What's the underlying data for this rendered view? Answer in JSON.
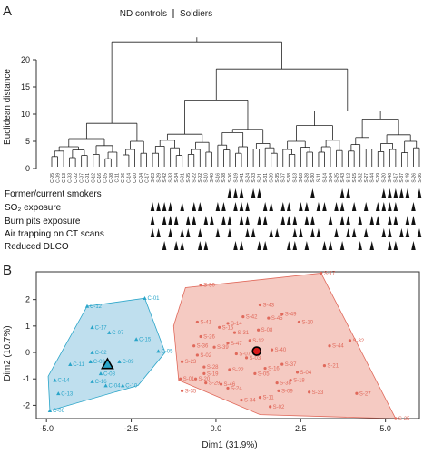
{
  "figure": {
    "panel_a_letter": "A",
    "panel_b_letter": "B"
  },
  "chart_data": [
    {
      "type": "dendrogram",
      "ylabel": "Euclidean distance",
      "ylim": [
        0,
        24
      ],
      "yticks": [
        0,
        5,
        10,
        15,
        20
      ],
      "groups": [
        {
          "name": "ND controls"
        },
        {
          "name": "Soldiers"
        }
      ],
      "leaves": [
        "C-05",
        "C-09",
        "C-13",
        "C-03",
        "C-02",
        "C-07",
        "C-01",
        "C-12",
        "C-16",
        "C-15",
        "C-08",
        "C-11",
        "C-06",
        "C-14",
        "C-10",
        "C-04",
        "C-17",
        "S-23",
        "S-29",
        "S-42",
        "S-33",
        "S-34",
        "S-01",
        "S-05",
        "S-22",
        "S-02",
        "S-10",
        "S-40",
        "S-16",
        "S-08",
        "S-06",
        "S-19",
        "S-41",
        "S-24",
        "S-03",
        "S-21",
        "S-31",
        "S-39",
        "S-35",
        "S-07",
        "S-38",
        "S-13",
        "S-18",
        "S-28",
        "S-30",
        "S-11",
        "S-14",
        "S-04",
        "S-25",
        "S-43",
        "S-12",
        "S-15",
        "S-32",
        "S-27",
        "S-44",
        "S-09",
        "S-20",
        "S-46",
        "S-17",
        "S-37",
        "S-48",
        "S-26",
        "S-36"
      ],
      "traits": [
        {
          "name": "Former/current smokers",
          "present": [
            "S-06",
            "S-19",
            "S-41",
            "S-03",
            "S-21",
            "S-30",
            "S-43",
            "S-12",
            "S-20",
            "S-46",
            "S-17",
            "S-37",
            "S-48",
            "S-36"
          ]
        },
        {
          "name": "SO₂ exposure",
          "present": [
            "S-23",
            "S-29",
            "S-42",
            "S-33",
            "S-01",
            "S-22",
            "S-02",
            "S-16",
            "S-08",
            "S-19",
            "S-41",
            "S-24",
            "S-31",
            "S-39",
            "S-07",
            "S-38",
            "S-18",
            "S-28",
            "S-11",
            "S-14",
            "S-25",
            "S-43",
            "S-15",
            "S-27",
            "S-09",
            "S-20",
            "S-46",
            "S-17",
            "S-26"
          ]
        },
        {
          "name": "Burn pits exposure",
          "present": [
            "S-23",
            "S-42",
            "S-33",
            "S-34",
            "S-05",
            "S-22",
            "S-10",
            "S-40",
            "S-08",
            "S-06",
            "S-41",
            "S-24",
            "S-21",
            "S-31",
            "S-07",
            "S-38",
            "S-13",
            "S-28",
            "S-30",
            "S-04",
            "S-43",
            "S-12",
            "S-32",
            "S-44",
            "S-09",
            "S-46",
            "S-17",
            "S-48",
            "S-26"
          ]
        },
        {
          "name": "Air trapping on CT scans",
          "present": [
            "S-23",
            "S-29",
            "S-33",
            "S-01",
            "S-05",
            "S-02",
            "S-16",
            "S-06",
            "S-24",
            "S-03",
            "S-39",
            "S-35",
            "S-13",
            "S-18",
            "S-30",
            "S-11",
            "S-25",
            "S-12",
            "S-15",
            "S-27",
            "S-20",
            "S-46",
            "S-37",
            "S-48",
            "S-36"
          ]
        },
        {
          "name": "Reduced DLCO",
          "present": [
            "S-42",
            "S-34",
            "S-01",
            "S-02",
            "S-10",
            "S-19",
            "S-41",
            "S-21",
            "S-31",
            "S-38",
            "S-13",
            "S-28",
            "S-14",
            "S-04",
            "S-43",
            "S-32",
            "S-44",
            "S-46",
            "S-17",
            "S-26"
          ]
        }
      ]
    },
    {
      "type": "scatter",
      "xlabel": "Dim1 (31.9%)",
      "ylabel": "Dim2 (10.7%)",
      "xlim": [
        -5.3,
        6.0
      ],
      "ylim": [
        -2.5,
        3.05
      ],
      "xticks": [
        -5.0,
        -2.5,
        0.0,
        2.5,
        5.0
      ],
      "xtick_labels": [
        "-5.0",
        "-2.5",
        "0.0",
        "2.5",
        "5.0"
      ],
      "yticks": [
        -2,
        -1,
        0,
        1,
        2
      ],
      "yticklabels": [
        "-2",
        "-1",
        "0",
        "1",
        "2"
      ],
      "series": [
        {
          "color": "#2aa5c9",
          "fill": "#a9d4e8",
          "marker": "triangle",
          "centroid": {
            "x": -3.2,
            "y": -0.45
          },
          "hull": [
            [
              -4.9,
              -2.2
            ],
            [
              -2.3,
              -1.25
            ],
            [
              -1.5,
              0.0
            ],
            [
              -2.1,
              2.05
            ],
            [
              -3.8,
              1.75
            ],
            [
              -4.95,
              -0.9
            ]
          ],
          "points": [
            {
              "label": "C-01",
              "x": -2.1,
              "y": 2.05
            },
            {
              "label": "C-12",
              "x": -3.8,
              "y": 1.75
            },
            {
              "label": "C-17",
              "x": -3.65,
              "y": 0.95
            },
            {
              "label": "C-07",
              "x": -3.15,
              "y": 0.75
            },
            {
              "label": "C-15",
              "x": -2.35,
              "y": 0.5
            },
            {
              "label": "C-05",
              "x": -1.7,
              "y": 0.05
            },
            {
              "label": "C-02",
              "x": -3.65,
              "y": 0.0
            },
            {
              "label": "C-03",
              "x": -3.7,
              "y": -0.35
            },
            {
              "label": "C-09",
              "x": -2.85,
              "y": -0.35
            },
            {
              "label": "C-11",
              "x": -4.3,
              "y": -0.45
            },
            {
              "label": "C-08",
              "x": -3.4,
              "y": -0.8
            },
            {
              "label": "C-14",
              "x": -4.75,
              "y": -1.05
            },
            {
              "label": "C-16",
              "x": -3.65,
              "y": -1.1
            },
            {
              "label": "C-04",
              "x": -3.25,
              "y": -1.25
            },
            {
              "label": "C-10",
              "x": -2.75,
              "y": -1.25
            },
            {
              "label": "C-13",
              "x": -4.65,
              "y": -1.55
            },
            {
              "label": "C-06",
              "x": -4.9,
              "y": -2.2
            }
          ]
        },
        {
          "color": "#e0695b",
          "fill": "#f1b8ae",
          "marker": "circle",
          "centroid": {
            "x": 1.2,
            "y": 0.05
          },
          "hull": [
            [
              -1.1,
              -1.05
            ],
            [
              1.3,
              -2.35
            ],
            [
              5.3,
              -2.5
            ],
            [
              3.1,
              3.0
            ],
            [
              -0.9,
              2.45
            ],
            [
              -1.25,
              1.0
            ]
          ],
          "points": [
            {
              "label": "S-17",
              "x": 3.1,
              "y": 3.0
            },
            {
              "label": "S-30",
              "x": -0.45,
              "y": 2.55
            },
            {
              "label": "S-43",
              "x": 1.3,
              "y": 1.8
            },
            {
              "label": "S-49",
              "x": 1.95,
              "y": 1.45
            },
            {
              "label": "S-42",
              "x": 0.8,
              "y": 1.35
            },
            {
              "label": "S-45",
              "x": 1.55,
              "y": 1.3
            },
            {
              "label": "S-10",
              "x": 2.45,
              "y": 1.15
            },
            {
              "label": "S-41",
              "x": -0.55,
              "y": 1.15
            },
            {
              "label": "S-14",
              "x": 0.35,
              "y": 1.1
            },
            {
              "label": "S-15",
              "x": 0.1,
              "y": 0.95
            },
            {
              "label": "S-31",
              "x": 0.55,
              "y": 0.75
            },
            {
              "label": "S-08",
              "x": 1.25,
              "y": 0.85
            },
            {
              "label": "S-32",
              "x": 3.95,
              "y": 0.45
            },
            {
              "label": "S-44",
              "x": 3.35,
              "y": 0.25
            },
            {
              "label": "S-26",
              "x": -0.45,
              "y": 0.6
            },
            {
              "label": "S-47",
              "x": 0.35,
              "y": 0.35
            },
            {
              "label": "S-12",
              "x": 1.0,
              "y": 0.45
            },
            {
              "label": "S-36",
              "x": -0.65,
              "y": 0.25
            },
            {
              "label": "S-39",
              "x": -0.05,
              "y": 0.2
            },
            {
              "label": "S-40",
              "x": 1.65,
              "y": 0.1
            },
            {
              "label": "S-02",
              "x": -0.55,
              "y": -0.1
            },
            {
              "label": "S-23",
              "x": -1.0,
              "y": -0.35
            },
            {
              "label": "S-07",
              "x": 0.6,
              "y": -0.05
            },
            {
              "label": "S-03",
              "x": 0.9,
              "y": -0.2
            },
            {
              "label": "S-21",
              "x": 3.2,
              "y": -0.5
            },
            {
              "label": "S-37",
              "x": 1.95,
              "y": -0.45
            },
            {
              "label": "S-28",
              "x": -0.35,
              "y": -0.55
            },
            {
              "label": "S-16",
              "x": 1.45,
              "y": -0.6
            },
            {
              "label": "S-22",
              "x": 0.4,
              "y": -0.65
            },
            {
              "label": "S-05",
              "x": 1.15,
              "y": -0.8
            },
            {
              "label": "S-04",
              "x": 2.4,
              "y": -0.75
            },
            {
              "label": "S-19",
              "x": -0.35,
              "y": -0.8
            },
            {
              "label": "S-01",
              "x": -1.05,
              "y": -1.0
            },
            {
              "label": "S-20",
              "x": -0.6,
              "y": -1.0
            },
            {
              "label": "S-18",
              "x": 2.2,
              "y": -1.05
            },
            {
              "label": "S-38",
              "x": 1.8,
              "y": -1.15
            },
            {
              "label": "S-29",
              "x": -0.3,
              "y": -1.15
            },
            {
              "label": "S-46",
              "x": 0.15,
              "y": -1.2
            },
            {
              "label": "S-24",
              "x": 0.35,
              "y": -1.35
            },
            {
              "label": "S-33",
              "x": 2.75,
              "y": -1.5
            },
            {
              "label": "S-09",
              "x": 1.85,
              "y": -1.45
            },
            {
              "label": "S-27",
              "x": 4.15,
              "y": -1.55
            },
            {
              "label": "S-35",
              "x": -1.0,
              "y": -1.45
            },
            {
              "label": "S-11",
              "x": 1.3,
              "y": -1.7
            },
            {
              "label": "S-34",
              "x": 0.75,
              "y": -1.8
            },
            {
              "label": "S-02b",
              "x": 1.6,
              "y": -2.05
            },
            {
              "label": "S-25",
              "x": 5.3,
              "y": -2.5
            }
          ]
        }
      ]
    }
  ]
}
